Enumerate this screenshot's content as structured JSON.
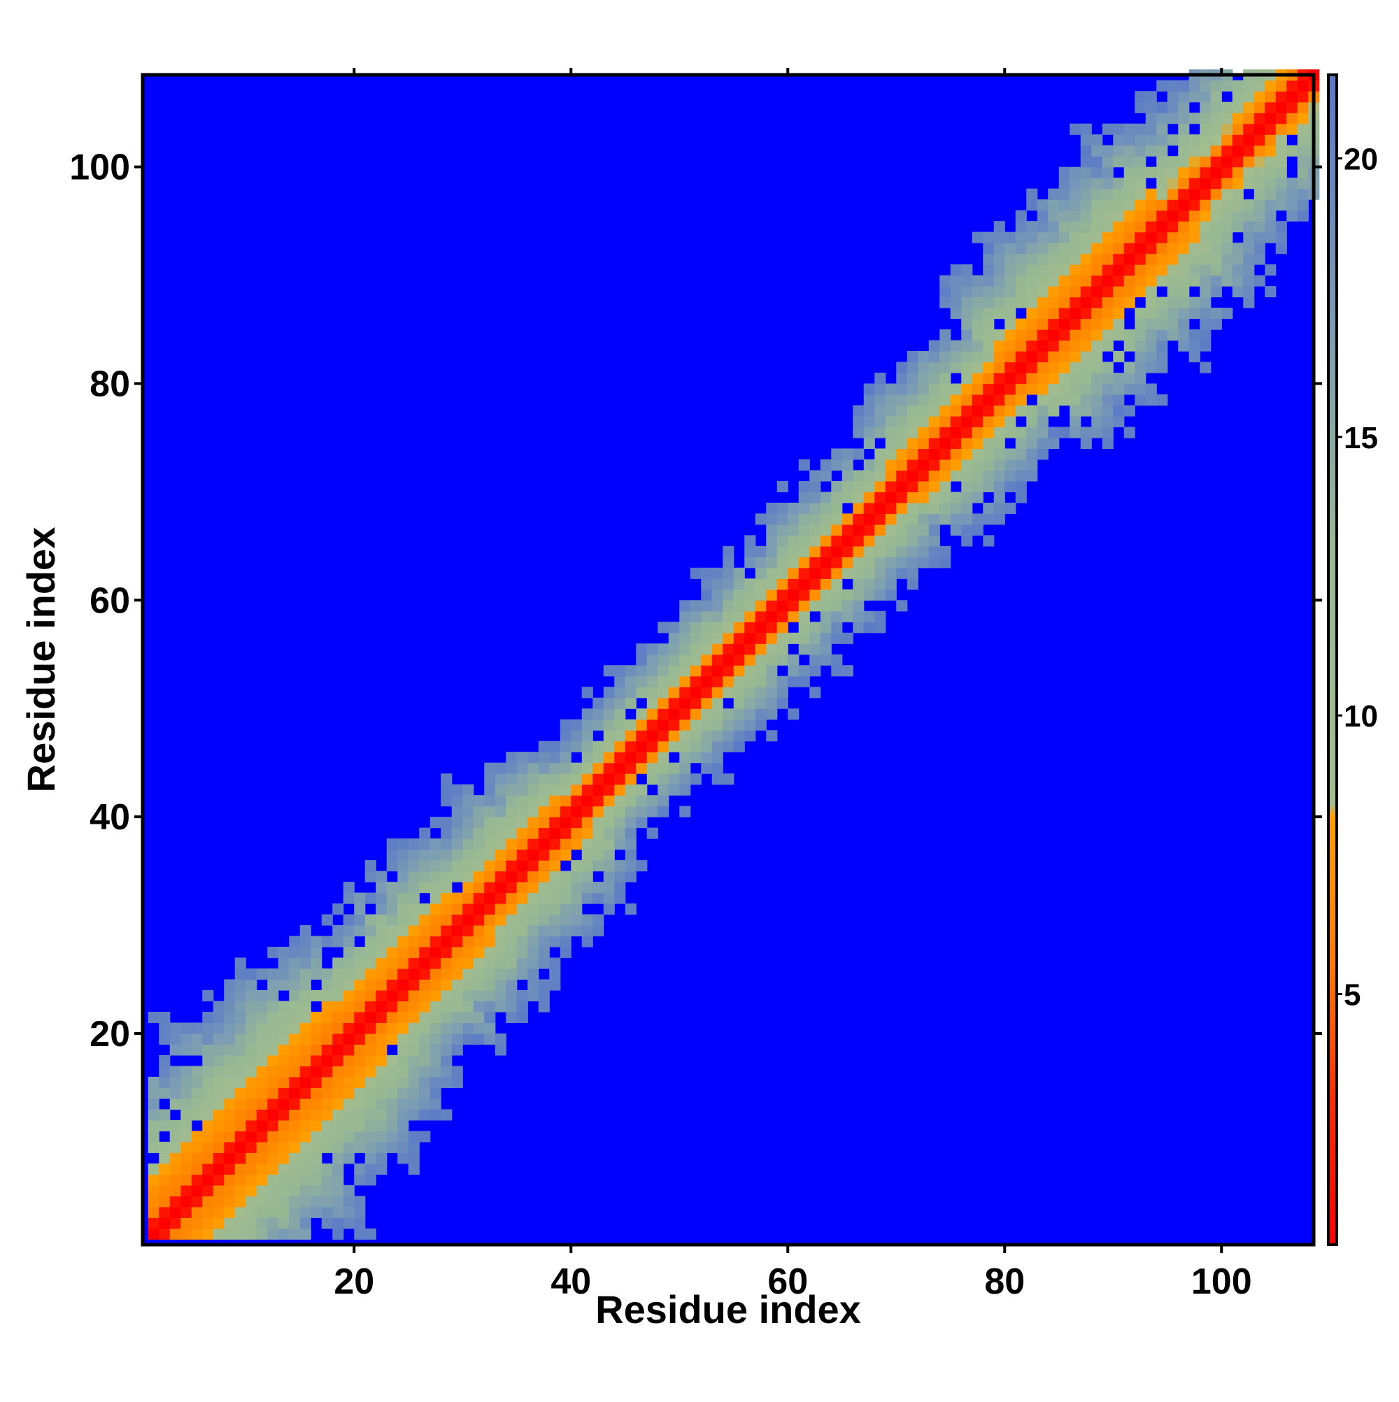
{
  "chart_data": {
    "type": "heatmap",
    "title": "",
    "xlabel": "Residue index",
    "ylabel": "Residue index",
    "n_residues": 108,
    "xlim": [
      1,
      108
    ],
    "ylim": [
      1,
      108
    ],
    "x_ticks": [
      20,
      40,
      60,
      80,
      100
    ],
    "y_ticks": [
      20,
      40,
      60,
      80,
      100
    ],
    "x_tick_labels": [
      "20",
      "40",
      "60",
      "80",
      "100"
    ],
    "y_tick_labels": [
      "20",
      "40",
      "60",
      "80",
      "100"
    ],
    "grid": false,
    "value_range": [
      0.5,
      21.5
    ],
    "out_of_range_value": 21.5,
    "colorbar": {
      "ticks": [
        5,
        10,
        15,
        20
      ],
      "tick_labels": [
        "5",
        "10",
        "15",
        "20"
      ],
      "placement": "right",
      "stops": [
        {
          "value": 0.5,
          "color": "#ff0000"
        },
        {
          "value": 3.0,
          "color": "#ff2a00"
        },
        {
          "value": 5.5,
          "color": "#ff7a00"
        },
        {
          "value": 8.2,
          "color": "#ffa000"
        },
        {
          "value": 8.4,
          "color": "#a4bd8c"
        },
        {
          "value": 13.0,
          "color": "#98b894"
        },
        {
          "value": 17.0,
          "color": "#7b9cb4"
        },
        {
          "value": 21.5,
          "color": "#5a78c8"
        }
      ]
    },
    "background_color": "#0000ff",
    "band_profile": {
      "description_note": "",
      "segments": [
        {
          "from": 1,
          "to": 20,
          "core_width": 1.6,
          "orange_width": 5.5,
          "gray_width": 17
        },
        {
          "from": 20,
          "to": 30,
          "core_width": 1.5,
          "orange_width": 4.5,
          "gray_width": 13
        },
        {
          "from": 30,
          "to": 40,
          "core_width": 1.5,
          "orange_width": 3.5,
          "gray_width": 12
        },
        {
          "from": 40,
          "to": 70,
          "core_width": 1.4,
          "orange_width": 2.4,
          "gray_width": 9
        },
        {
          "from": 70,
          "to": 80,
          "core_width": 1.5,
          "orange_width": 3.2,
          "gray_width": 11
        },
        {
          "from": 80,
          "to": 95,
          "core_width": 1.5,
          "orange_width": 4.5,
          "gray_width": 14
        },
        {
          "from": 95,
          "to": 108,
          "core_width": 1.5,
          "orange_width": 3.0,
          "gray_width": 13
        }
      ]
    }
  }
}
